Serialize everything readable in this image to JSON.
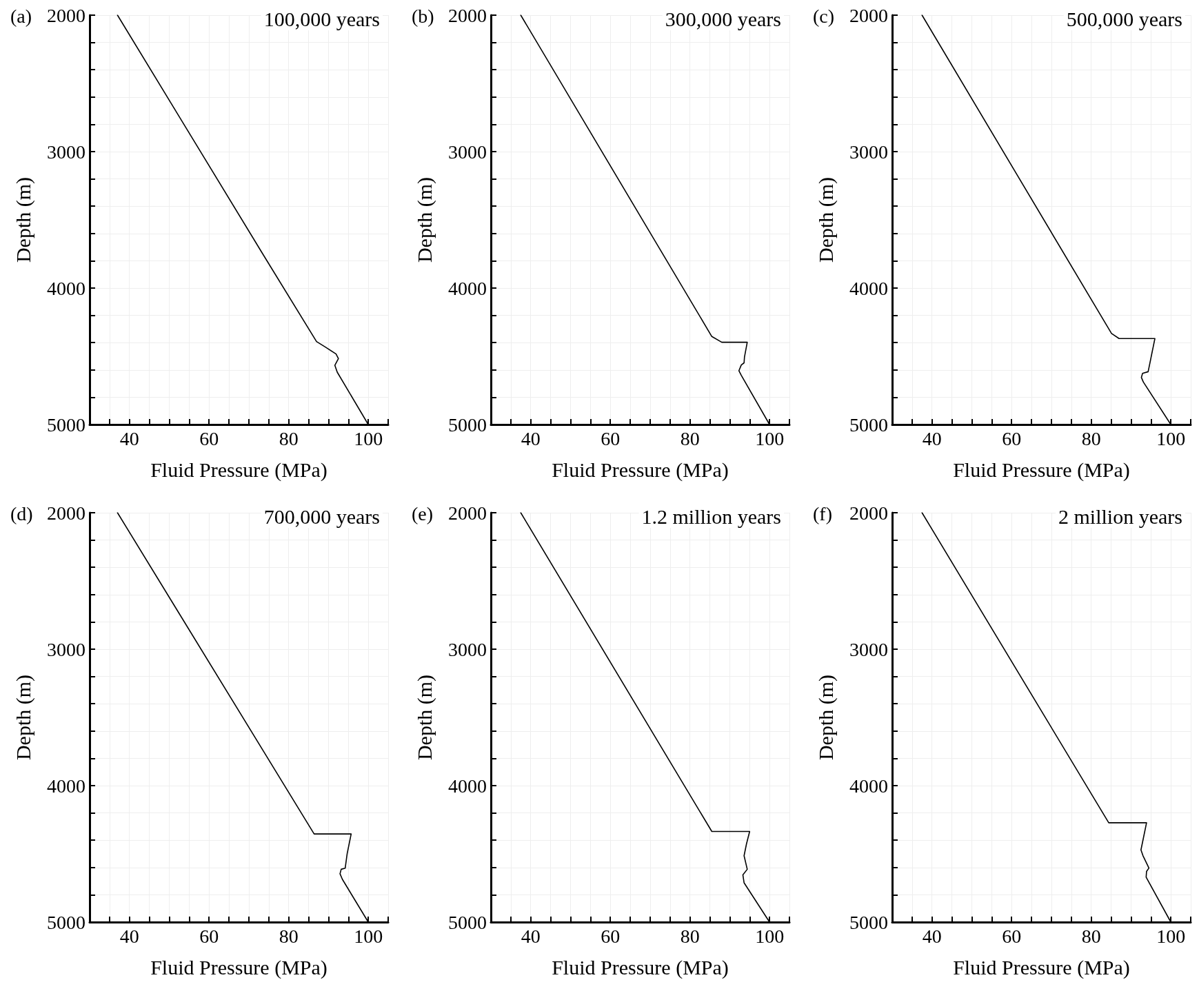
{
  "chart_data": [
    {
      "type": "line",
      "title": "(a)",
      "xlabel": "Fluid Pressure (MPa)",
      "ylabel": "Depth (m)",
      "annotations": [
        "100,000 years"
      ],
      "xlim": [
        30,
        105
      ],
      "ylim": [
        5000,
        2000
      ],
      "xticks": [
        {
          "value": 35,
          "label": null
        },
        40,
        {
          "value": 45,
          "label": null
        },
        {
          "value": 50,
          "label": null
        },
        {
          "value": 55,
          "label": null
        },
        60,
        {
          "value": 65,
          "label": null
        },
        {
          "value": 70,
          "label": null
        },
        {
          "value": 75,
          "label": null
        },
        80,
        {
          "value": 85,
          "label": null
        },
        {
          "value": 90,
          "label": null
        },
        {
          "value": 95,
          "label": null
        },
        100,
        {
          "value": 105,
          "label": null
        }
      ],
      "yticks": [
        2000,
        {
          "value": 2200,
          "label": null
        },
        {
          "value": 2400,
          "label": null
        },
        {
          "value": 2600,
          "label": null
        },
        {
          "value": 2800,
          "label": null
        },
        3000,
        {
          "value": 3200,
          "label": null
        },
        {
          "value": 3400,
          "label": null
        },
        {
          "value": 3600,
          "label": null
        },
        {
          "value": 3800,
          "label": null
        },
        4000,
        {
          "value": 4200,
          "label": null
        },
        {
          "value": 4400,
          "label": null
        },
        {
          "value": 4600,
          "label": null
        },
        {
          "value": 4800,
          "label": null
        },
        5000
      ],
      "grid": true,
      "marker": "none",
      "line_style": "solid",
      "series": [
        {
          "color": "#000000",
          "x": [
            37,
            73.6,
            87.0,
            89.3,
            91.9,
            92.5,
            91.6,
            92.2,
            100
          ],
          "values": [
            2000,
            3755,
            4392,
            4434,
            4483,
            4517,
            4566,
            4616,
            5000
          ]
        }
      ]
    },
    {
      "type": "line",
      "title": "(b)",
      "xlabel": "Fluid Pressure (MPa)",
      "ylabel": "Depth (m)",
      "annotations": [
        "300,000 years"
      ],
      "xlim": [
        30,
        105
      ],
      "ylim": [
        5000,
        2000
      ],
      "xticks": [
        {
          "value": 35,
          "label": null
        },
        40,
        {
          "value": 45,
          "label": null
        },
        {
          "value": 50,
          "label": null
        },
        {
          "value": 55,
          "label": null
        },
        60,
        {
          "value": 65,
          "label": null
        },
        {
          "value": 70,
          "label": null
        },
        {
          "value": 75,
          "label": null
        },
        80,
        {
          "value": 85,
          "label": null
        },
        {
          "value": 90,
          "label": null
        },
        {
          "value": 95,
          "label": null
        },
        100,
        {
          "value": 105,
          "label": null
        }
      ],
      "yticks": [
        2000,
        {
          "value": 2200,
          "label": null
        },
        {
          "value": 2400,
          "label": null
        },
        {
          "value": 2600,
          "label": null
        },
        {
          "value": 2800,
          "label": null
        },
        3000,
        {
          "value": 3200,
          "label": null
        },
        {
          "value": 3400,
          "label": null
        },
        {
          "value": 3600,
          "label": null
        },
        {
          "value": 3800,
          "label": null
        },
        4000,
        {
          "value": 4200,
          "label": null
        },
        {
          "value": 4400,
          "label": null
        },
        {
          "value": 4600,
          "label": null
        },
        {
          "value": 4800,
          "label": null
        },
        5000
      ],
      "grid": true,
      "marker": "none",
      "line_style": "solid",
      "series": [
        {
          "color": "#000000",
          "x": [
            37.5,
            85.5,
            88.0,
            94.4,
            93.7,
            93.6,
            92.9,
            92.3,
            92.9,
            100
          ],
          "values": [
            2000,
            4355,
            4397,
            4397,
            4506,
            4548,
            4564,
            4606,
            4640,
            5000
          ]
        }
      ]
    },
    {
      "type": "line",
      "title": "(c)",
      "xlabel": "Fluid Pressure (MPa)",
      "ylabel": "Depth (m)",
      "annotations": [
        "500,000 years"
      ],
      "xlim": [
        30,
        105
      ],
      "ylim": [
        5000,
        2000
      ],
      "xticks": [
        {
          "value": 35,
          "label": null
        },
        40,
        {
          "value": 45,
          "label": null
        },
        {
          "value": 50,
          "label": null
        },
        {
          "value": 55,
          "label": null
        },
        60,
        {
          "value": 65,
          "label": null
        },
        {
          "value": 70,
          "label": null
        },
        {
          "value": 75,
          "label": null
        },
        80,
        {
          "value": 85,
          "label": null
        },
        {
          "value": 90,
          "label": null
        },
        {
          "value": 95,
          "label": null
        },
        100,
        {
          "value": 105,
          "label": null
        }
      ],
      "yticks": [
        2000,
        {
          "value": 2200,
          "label": null
        },
        {
          "value": 2400,
          "label": null
        },
        {
          "value": 2600,
          "label": null
        },
        {
          "value": 2800,
          "label": null
        },
        3000,
        {
          "value": 3200,
          "label": null
        },
        {
          "value": 3400,
          "label": null
        },
        {
          "value": 3600,
          "label": null
        },
        {
          "value": 3800,
          "label": null
        },
        4000,
        {
          "value": 4200,
          "label": null
        },
        {
          "value": 4400,
          "label": null
        },
        {
          "value": 4600,
          "label": null
        },
        {
          "value": 4800,
          "label": null
        },
        5000
      ],
      "grid": true,
      "marker": "none",
      "line_style": "solid",
      "series": [
        {
          "color": "#000000",
          "x": [
            37.5,
            85.1,
            87.0,
            96.0,
            94.3,
            92.9,
            92.6,
            93.1,
            100
          ],
          "values": [
            2000,
            4333,
            4370,
            4370,
            4613,
            4625,
            4655,
            4689,
            5000
          ]
        }
      ]
    },
    {
      "type": "line",
      "title": "(d)",
      "xlabel": "Fluid Pressure (MPa)",
      "ylabel": "Depth (m)",
      "annotations": [
        "700,000 years"
      ],
      "xlim": [
        30,
        105
      ],
      "ylim": [
        5000,
        2000
      ],
      "xticks": [
        {
          "value": 35,
          "label": null
        },
        40,
        {
          "value": 45,
          "label": null
        },
        {
          "value": 50,
          "label": null
        },
        {
          "value": 55,
          "label": null
        },
        60,
        {
          "value": 65,
          "label": null
        },
        {
          "value": 70,
          "label": null
        },
        {
          "value": 75,
          "label": null
        },
        80,
        {
          "value": 85,
          "label": null
        },
        {
          "value": 90,
          "label": null
        },
        {
          "value": 95,
          "label": null
        },
        100,
        {
          "value": 105,
          "label": null
        }
      ],
      "yticks": [
        2000,
        {
          "value": 2200,
          "label": null
        },
        {
          "value": 2400,
          "label": null
        },
        {
          "value": 2600,
          "label": null
        },
        {
          "value": 2800,
          "label": null
        },
        3000,
        {
          "value": 3200,
          "label": null
        },
        {
          "value": 3400,
          "label": null
        },
        {
          "value": 3600,
          "label": null
        },
        {
          "value": 3800,
          "label": null
        },
        4000,
        {
          "value": 4200,
          "label": null
        },
        {
          "value": 4400,
          "label": null
        },
        {
          "value": 4600,
          "label": null
        },
        {
          "value": 4800,
          "label": null
        },
        5000
      ],
      "grid": true,
      "marker": "none",
      "line_style": "solid",
      "series": [
        {
          "color": "#000000",
          "x": [
            37,
            86.4,
            95.7,
            94.7,
            94.2,
            93.2,
            92.9,
            93.5,
            100
          ],
          "values": [
            2000,
            4354,
            4354,
            4498,
            4605,
            4613,
            4646,
            4687,
            5000
          ]
        }
      ]
    },
    {
      "type": "line",
      "title": "(e)",
      "xlabel": "Fluid Pressure (MPa)",
      "ylabel": "Depth (m)",
      "annotations": [
        "1.2 million years"
      ],
      "xlim": [
        30,
        105
      ],
      "ylim": [
        5000,
        2000
      ],
      "xticks": [
        {
          "value": 35,
          "label": null
        },
        40,
        {
          "value": 45,
          "label": null
        },
        {
          "value": 50,
          "label": null
        },
        {
          "value": 55,
          "label": null
        },
        60,
        {
          "value": 65,
          "label": null
        },
        {
          "value": 70,
          "label": null
        },
        {
          "value": 75,
          "label": null
        },
        80,
        {
          "value": 85,
          "label": null
        },
        {
          "value": 90,
          "label": null
        },
        {
          "value": 95,
          "label": null
        },
        100,
        {
          "value": 105,
          "label": null
        }
      ],
      "yticks": [
        2000,
        {
          "value": 2200,
          "label": null
        },
        {
          "value": 2400,
          "label": null
        },
        {
          "value": 2600,
          "label": null
        },
        {
          "value": 2800,
          "label": null
        },
        3000,
        {
          "value": 3200,
          "label": null
        },
        {
          "value": 3400,
          "label": null
        },
        {
          "value": 3600,
          "label": null
        },
        {
          "value": 3800,
          "label": null
        },
        4000,
        {
          "value": 4200,
          "label": null
        },
        {
          "value": 4400,
          "label": null
        },
        {
          "value": 4600,
          "label": null
        },
        {
          "value": 4800,
          "label": null
        },
        5000
      ],
      "grid": true,
      "marker": "none",
      "line_style": "solid",
      "series": [
        {
          "color": "#000000",
          "x": [
            37.5,
            85.5,
            95.0,
            94.2,
            93.6,
            94.4,
            93.3,
            93.6,
            100
          ],
          "values": [
            2000,
            4336,
            4336,
            4428,
            4514,
            4613,
            4654,
            4712,
            5000
          ]
        }
      ]
    },
    {
      "type": "line",
      "title": "(f)",
      "xlabel": "Fluid Pressure (MPa)",
      "ylabel": "Depth (m)",
      "annotations": [
        "2 million years"
      ],
      "xlim": [
        30,
        105
      ],
      "ylim": [
        5000,
        2000
      ],
      "xticks": [
        {
          "value": 35,
          "label": null
        },
        40,
        {
          "value": 45,
          "label": null
        },
        {
          "value": 50,
          "label": null
        },
        {
          "value": 55,
          "label": null
        },
        60,
        {
          "value": 65,
          "label": null
        },
        {
          "value": 70,
          "label": null
        },
        {
          "value": 75,
          "label": null
        },
        80,
        {
          "value": 85,
          "label": null
        },
        {
          "value": 90,
          "label": null
        },
        {
          "value": 95,
          "label": null
        },
        100,
        {
          "value": 105,
          "label": null
        }
      ],
      "yticks": [
        2000,
        {
          "value": 2200,
          "label": null
        },
        {
          "value": 2400,
          "label": null
        },
        {
          "value": 2600,
          "label": null
        },
        {
          "value": 2800,
          "label": null
        },
        3000,
        {
          "value": 3200,
          "label": null
        },
        {
          "value": 3400,
          "label": null
        },
        {
          "value": 3600,
          "label": null
        },
        {
          "value": 3800,
          "label": null
        },
        4000,
        {
          "value": 4200,
          "label": null
        },
        {
          "value": 4400,
          "label": null
        },
        {
          "value": 4600,
          "label": null
        },
        {
          "value": 4800,
          "label": null
        },
        5000
      ],
      "grid": true,
      "marker": "none",
      "line_style": "solid",
      "series": [
        {
          "color": "#000000",
          "x": [
            37.5,
            84.4,
            93.9,
            92.5,
            93.0,
            94.5,
            93.9,
            93.8,
            100
          ],
          "values": [
            2000,
            4272,
            4272,
            4471,
            4513,
            4604,
            4629,
            4671,
            5000
          ]
        }
      ]
    }
  ]
}
